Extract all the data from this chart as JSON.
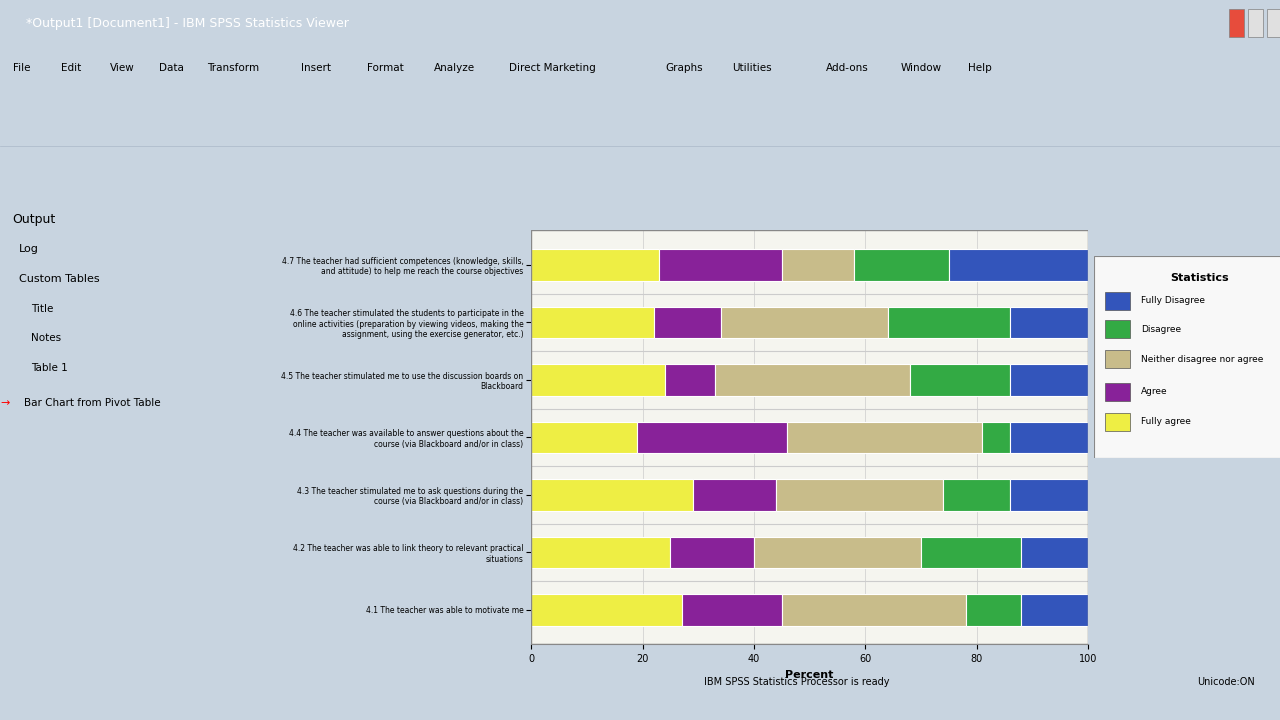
{
  "categories": [
    "4.7 The teacher had sufficient competences (knowledge, skills,\nand attitude) to help me reach the course objectives",
    "4.6 The teacher stimulated the students to participate in the\nonline activities (preparation by viewing videos, making the\nassignment, using the exercise generator, etc.)",
    "4.5 The teacher stimulated me to use the discussion boards on\nBlackboard",
    "4.4 The teacher was available to answer questions about the\ncourse (via Blackboard and/or in class)",
    "4.3 The teacher stimulated me to ask questions during the\ncourse (via Blackboard and/or in class)",
    "4.2 The teacher was able to link theory to relevant practical\nsituations",
    "4.1 The teacher was able to motivate me"
  ],
  "legend_labels": [
    "Fully Disagree",
    "Disagree",
    "Neither disagree nor agree",
    "Agree",
    "Fully agree"
  ],
  "colors": [
    "#3355bb",
    "#33aa44",
    "#c8bc8a",
    "#882299",
    "#eeee44"
  ],
  "data": [
    [
      25,
      17,
      13,
      22,
      23
    ],
    [
      14,
      22,
      30,
      12,
      22
    ],
    [
      14,
      18,
      35,
      9,
      24
    ],
    [
      14,
      5,
      35,
      27,
      19
    ],
    [
      14,
      12,
      30,
      15,
      29
    ],
    [
      12,
      18,
      30,
      15,
      25
    ],
    [
      12,
      10,
      33,
      18,
      27
    ]
  ],
  "xlabel": "Percent",
  "xlim": [
    0,
    100
  ],
  "xticks": [
    0,
    20,
    40,
    60,
    80,
    100
  ],
  "legend_title": "Statistics",
  "bar_height": 0.55,
  "title_bar_color": "#5a7fa8",
  "window_bg": "#c8d4e0",
  "menu_bg": "#dde8f0",
  "sidebar_bg": "#ffffff",
  "chart_area_bg": "#f0ede8",
  "chart_plot_bg": "#f5f5ef",
  "toolbar_bg": "#dde8f0"
}
